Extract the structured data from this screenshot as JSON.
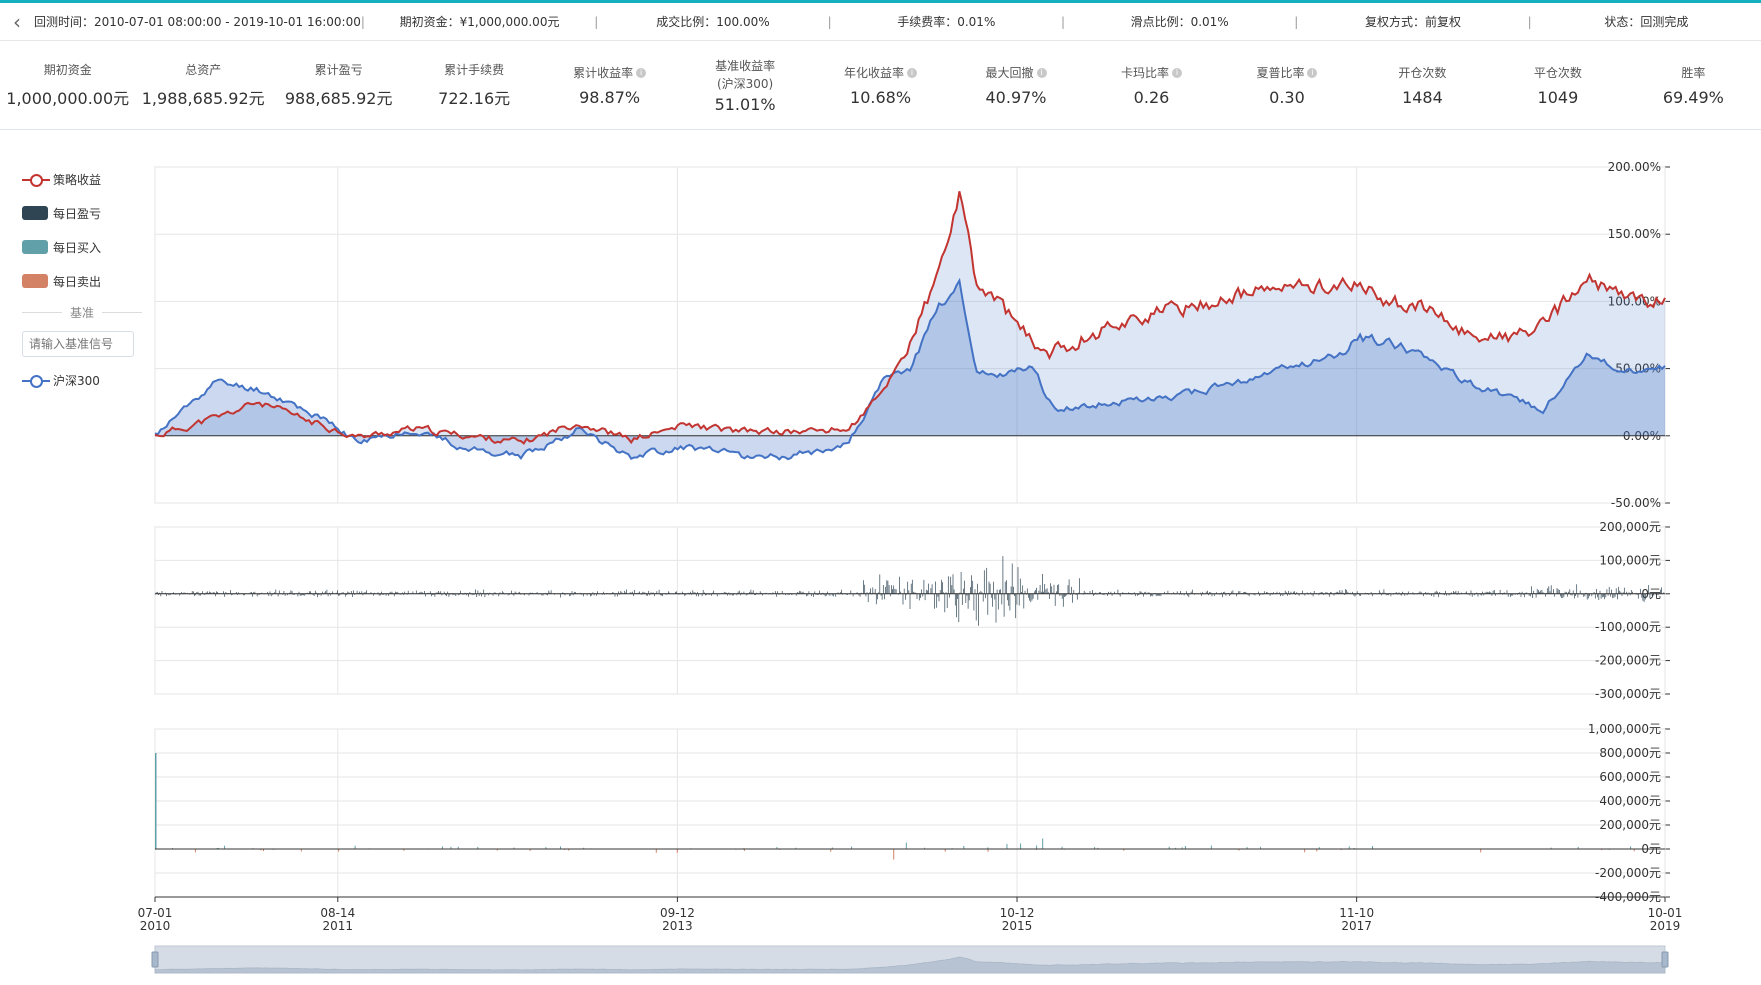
{
  "header": {
    "back_icon": "chevron-left-icon",
    "items": [
      "回测时间：2010-07-01 08:00:00 - 2019-10-01 16:00:00",
      "期初资金：¥1,000,000.00元",
      "成交比例：100.00%",
      "手续费率：0.01%",
      "滑点比例：0.01%",
      "复权方式：前复权",
      "状态：回测完成"
    ],
    "separator": "|"
  },
  "stats": [
    {
      "label": "期初资金",
      "value": "1,000,000.00元"
    },
    {
      "label": "总资产",
      "value": "1,988,685.92元"
    },
    {
      "label": "累计盈亏",
      "value": "988,685.92元"
    },
    {
      "label": "累计手续费",
      "value": "722.16元"
    },
    {
      "label": "累计收益率",
      "value": "98.87%",
      "info": true
    },
    {
      "label": "基准收益率",
      "sublabel": "(沪深300)",
      "value": "51.01%"
    },
    {
      "label": "年化收益率",
      "value": "10.68%",
      "info": true
    },
    {
      "label": "最大回撤",
      "value": "40.97%",
      "info": true
    },
    {
      "label": "卡玛比率",
      "value": "0.26",
      "info": true
    },
    {
      "label": "夏普比率",
      "value": "0.30",
      "info": true
    },
    {
      "label": "开仓次数",
      "value": "1484"
    },
    {
      "label": "平仓次数",
      "value": "1049"
    },
    {
      "label": "胜率",
      "value": "69.49%"
    }
  ],
  "legend": {
    "items": [
      {
        "label": "策略收益",
        "kind": "line",
        "color": "#c23531"
      },
      {
        "label": "每日盈亏",
        "kind": "rect",
        "color": "#2f4554"
      },
      {
        "label": "每日买入",
        "kind": "rect",
        "color": "#61a0a8"
      },
      {
        "label": "每日卖出",
        "kind": "rect",
        "color": "#d48265"
      }
    ],
    "benchmark_label": "基准",
    "benchmark_placeholder": "请输入基准信号",
    "benchmark_item": {
      "label": "沪深300",
      "color": "#4472c4"
    }
  },
  "chart_data": [
    {
      "type": "line",
      "x_range": [
        "2010-07-01",
        "2019-10-01"
      ],
      "ylim": [
        -50,
        200
      ],
      "y_ticks": [
        "200.00%",
        "150.00%",
        "100.00%",
        "50.00%",
        "0.00%",
        "-50.00%"
      ],
      "series": [
        {
          "name": "策略收益",
          "color": "#c23531",
          "x": [
            "2010-07-01",
            "2010-12-01",
            "2011-02-15",
            "2011-06-01",
            "2011-10-01",
            "2012-02-01",
            "2012-06-01",
            "2012-10-01",
            "2013-02-01",
            "2013-06-01",
            "2013-10-01",
            "2014-02-01",
            "2014-06-01",
            "2014-10-01",
            "2014-12-15",
            "2015-02-15",
            "2015-04-15",
            "2015-06-05",
            "2015-07-15",
            "2015-09-01",
            "2015-11-15",
            "2016-01-01",
            "2016-03-01",
            "2016-06-01",
            "2016-09-01",
            "2016-12-01",
            "2017-03-01",
            "2017-06-01",
            "2017-09-01",
            "2017-11-15",
            "2018-01-15",
            "2018-04-01",
            "2018-07-01",
            "2018-10-01",
            "2019-01-01",
            "2019-04-10",
            "2019-07-01",
            "2019-10-01"
          ],
          "values": [
            0,
            15,
            25,
            12,
            -1,
            5,
            0,
            -5,
            10,
            -3,
            8,
            3,
            3,
            5,
            32,
            70,
            115,
            178,
            110,
            100,
            68,
            62,
            72,
            85,
            92,
            98,
            105,
            110,
            112,
            112,
            100,
            96,
            78,
            72,
            80,
            117,
            102,
            100
          ]
        },
        {
          "name": "沪深300",
          "color": "#4472c4",
          "x": [
            "2010-07-01",
            "2010-11-10",
            "2011-02-15",
            "2011-06-01",
            "2011-10-01",
            "2012-02-01",
            "2012-06-01",
            "2012-10-01",
            "2013-02-01",
            "2013-06-01",
            "2013-10-01",
            "2014-02-01",
            "2014-06-01",
            "2014-10-01",
            "2014-12-15",
            "2015-02-15",
            "2015-04-15",
            "2015-06-05",
            "2015-07-15",
            "2015-09-01",
            "2015-11-15",
            "2016-01-01",
            "2016-03-01",
            "2016-06-01",
            "2016-09-01",
            "2016-12-01",
            "2017-03-01",
            "2017-06-01",
            "2017-09-01",
            "2017-11-15",
            "2018-01-15",
            "2018-04-01",
            "2018-07-01",
            "2018-10-01",
            "2019-01-01",
            "2019-04-10",
            "2019-07-01",
            "2019-10-01"
          ],
          "values": [
            0,
            40,
            35,
            20,
            -5,
            5,
            -10,
            -15,
            5,
            -15,
            -8,
            -15,
            -15,
            -5,
            40,
            50,
            95,
            112,
            48,
            45,
            52,
            20,
            22,
            25,
            28,
            34,
            40,
            50,
            58,
            72,
            70,
            63,
            42,
            30,
            20,
            62,
            47,
            51
          ]
        }
      ]
    },
    {
      "type": "bar",
      "name": "每日盈亏",
      "ylim": [
        -300000,
        200000
      ],
      "y_ticks": [
        "200,000元",
        "100,000元",
        "0元",
        "-100,000元",
        "-200,000元",
        "-300,000元"
      ],
      "color": "#2f4554"
    },
    {
      "type": "bar",
      "ylim": [
        -400000,
        1000000
      ],
      "y_ticks": [
        "1,000,000元",
        "800,000元",
        "600,000元",
        "400,000元",
        "200,000元",
        "0元",
        "-200,000元",
        "-400,000元"
      ],
      "series": [
        {
          "name": "每日买入",
          "color": "#61a0a8"
        },
        {
          "name": "每日卖出",
          "color": "#d48265"
        }
      ]
    }
  ],
  "x_axis": {
    "ticks": [
      {
        "md": "07-01",
        "y": "2010",
        "date": "2010-07-01"
      },
      {
        "md": "08-14",
        "y": "2011",
        "date": "2011-08-14"
      },
      {
        "md": "09-12",
        "y": "2013",
        "date": "2013-09-12"
      },
      {
        "md": "10-12",
        "y": "2015",
        "date": "2015-10-12"
      },
      {
        "md": "11-10",
        "y": "2017",
        "date": "2017-11-10"
      },
      {
        "md": "10-01",
        "y": "2019",
        "date": "2019-10-01"
      }
    ]
  }
}
